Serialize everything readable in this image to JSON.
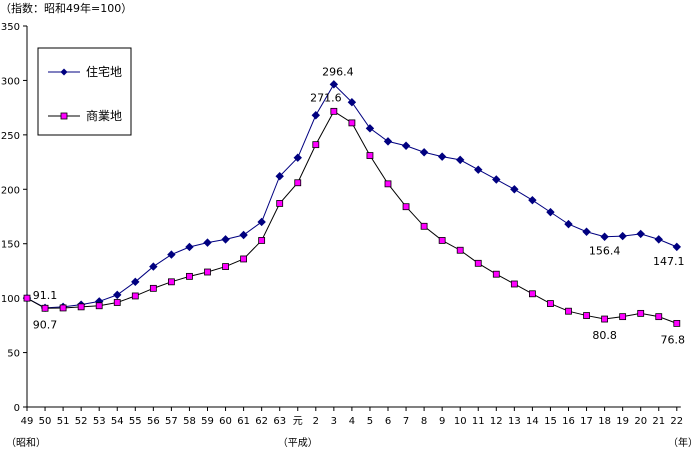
{
  "chart_data": {
    "type": "line",
    "unit_note": "（指数：昭和49年=100）",
    "categories": [
      "49",
      "50",
      "51",
      "52",
      "53",
      "54",
      "55",
      "56",
      "57",
      "58",
      "59",
      "60",
      "61",
      "62",
      "63",
      "元",
      "2",
      "3",
      "4",
      "5",
      "6",
      "7",
      "8",
      "9",
      "10",
      "11",
      "12",
      "13",
      "14",
      "15",
      "16",
      "17",
      "18",
      "19",
      "20",
      "21",
      "22"
    ],
    "era_labels": [
      "（昭和）",
      "（平成）",
      "（年）"
    ],
    "ylim": [
      0,
      350
    ],
    "yticks": [
      "0",
      "50",
      "100",
      "150",
      "200",
      "250",
      "300",
      "350"
    ],
    "grid": false,
    "legend_position": "top-left",
    "series": [
      {
        "name": "住宅地",
        "color": "#000080",
        "marker": "diamond",
        "values": [
          100,
          91.1,
          92,
          94,
          97,
          103,
          115,
          129,
          140,
          147,
          151,
          154,
          158,
          170,
          212,
          229,
          268,
          296.4,
          280,
          256,
          244,
          240,
          234,
          230,
          227,
          218,
          209,
          200,
          190,
          179,
          168,
          161,
          156.4,
          157,
          159,
          154,
          147.1
        ]
      },
      {
        "name": "商業地",
        "color": "#ff00ff",
        "marker": "square",
        "values": [
          100,
          90.7,
          91,
          92,
          93,
          96,
          102,
          109,
          115,
          120,
          124,
          129,
          136,
          153,
          187,
          206,
          241,
          271.6,
          261,
          231,
          205,
          184,
          166,
          153,
          144,
          132,
          122,
          113,
          104,
          95,
          88,
          84,
          80.8,
          83,
          86,
          83,
          76.8
        ]
      }
    ],
    "annotations": [
      {
        "series": 0,
        "index": 1,
        "text": "91.1"
      },
      {
        "series": 1,
        "index": 1,
        "text": "90.7"
      },
      {
        "series": 0,
        "index": 17,
        "text": "296.4"
      },
      {
        "series": 1,
        "index": 17,
        "text": "271.6"
      },
      {
        "series": 0,
        "index": 32,
        "text": "156.4"
      },
      {
        "series": 0,
        "index": 36,
        "text": "147.1"
      },
      {
        "series": 1,
        "index": 32,
        "text": "80.8"
      },
      {
        "series": 1,
        "index": 36,
        "text": "76.8"
      }
    ]
  }
}
